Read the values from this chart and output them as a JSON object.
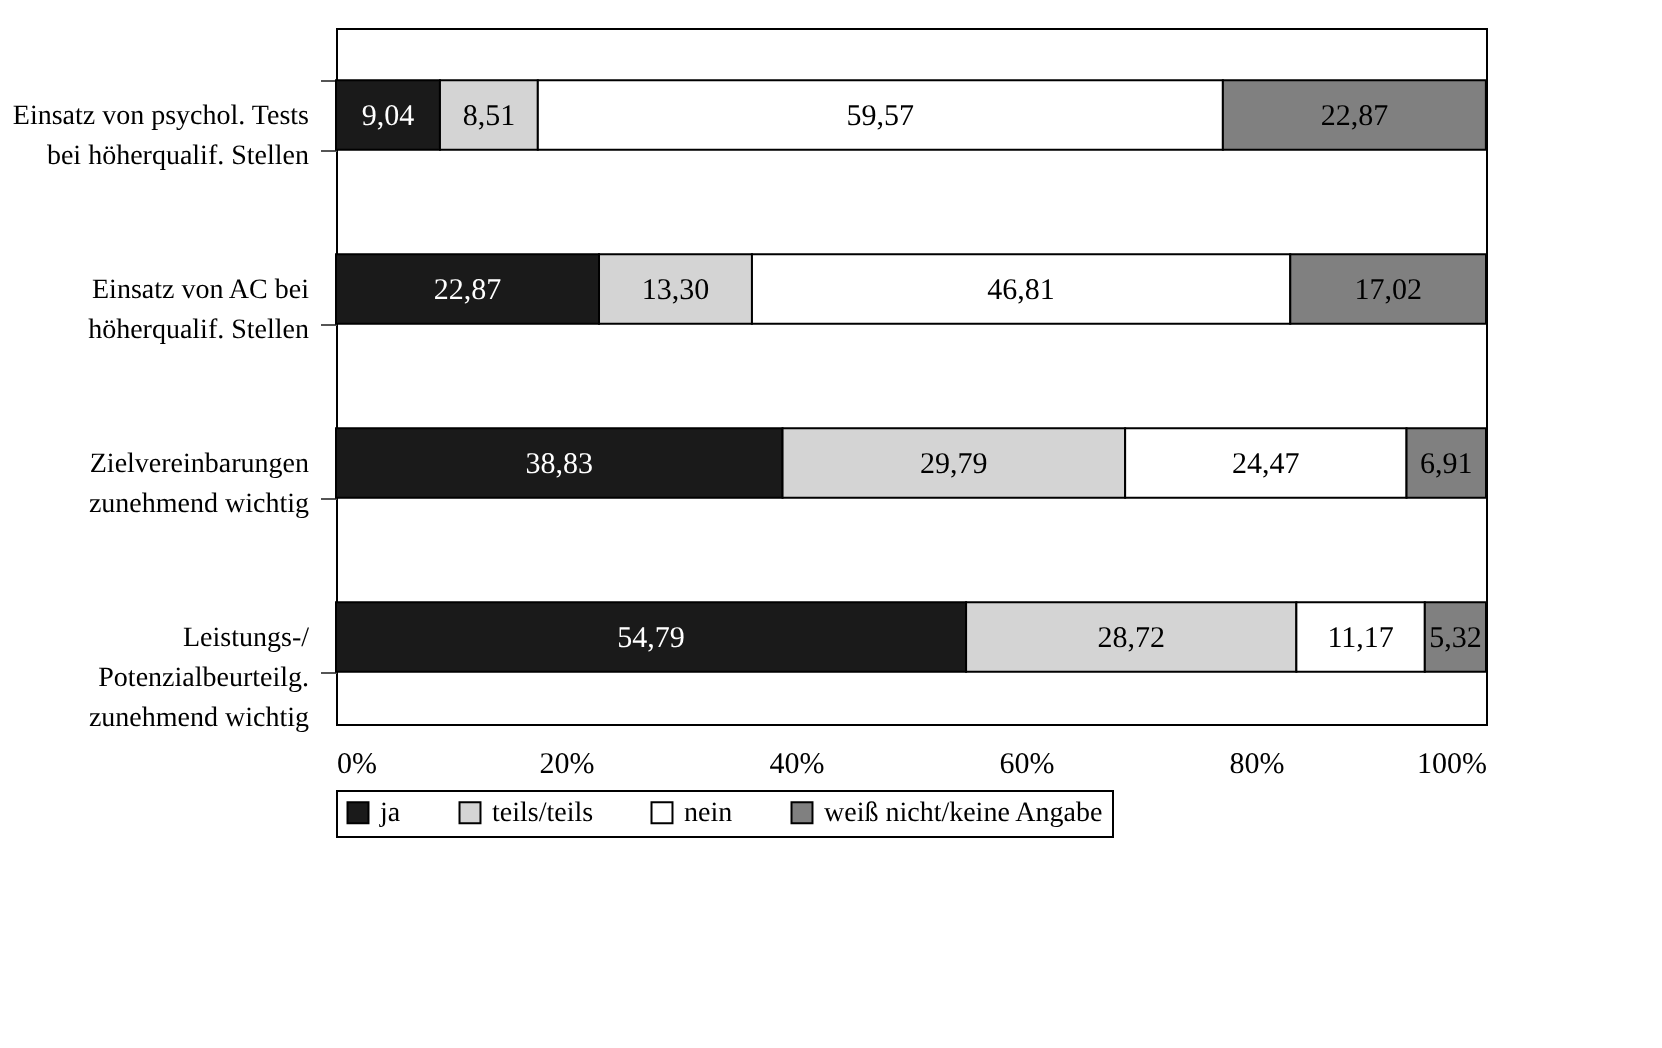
{
  "chart_data": {
    "type": "bar",
    "orientation": "horizontal",
    "stacked": true,
    "categories": [
      "Einsatz von psychol. Tests bei höherqualif. Stellen",
      "Einsatz von AC bei höherqualif. Stellen",
      "Zielvereinbarungen zunehmend wichtig",
      "Leistungs-/ Potenzialbeurteilg. zunehmend wichtig"
    ],
    "series": [
      {
        "name": "ja",
        "color": "#1a1a1a",
        "values": [
          9.04,
          22.87,
          38.83,
          54.79
        ],
        "value_labels": [
          "9,04",
          "22,87",
          "38,83",
          "54,79"
        ]
      },
      {
        "name": "teils/teils",
        "color": "#d4d4d4",
        "values": [
          8.51,
          13.3,
          29.79,
          28.72
        ],
        "value_labels": [
          "8,51",
          "13,30",
          "29,79",
          "28,72"
        ]
      },
      {
        "name": "nein",
        "color": "#ffffff",
        "values": [
          59.57,
          46.81,
          24.47,
          11.17
        ],
        "value_labels": [
          "59,57",
          "46,81",
          "24,47",
          "11,17"
        ]
      },
      {
        "name": "weiß nicht/keine Angabe",
        "color": "#808080",
        "values": [
          22.87,
          17.02,
          6.91,
          5.32
        ],
        "value_labels": [
          "22,87",
          "17,02",
          "6,91",
          "5,32"
        ]
      }
    ],
    "xlim": [
      0,
      100
    ],
    "xticks": [
      {
        "value": 0,
        "label": "0%"
      },
      {
        "value": 20,
        "label": "20%"
      },
      {
        "value": 40,
        "label": "40%"
      },
      {
        "value": 60,
        "label": "60%"
      },
      {
        "value": 80,
        "label": "80%"
      },
      {
        "value": 100,
        "label": "100%"
      }
    ],
    "legend": "bottom",
    "grid": false
  }
}
